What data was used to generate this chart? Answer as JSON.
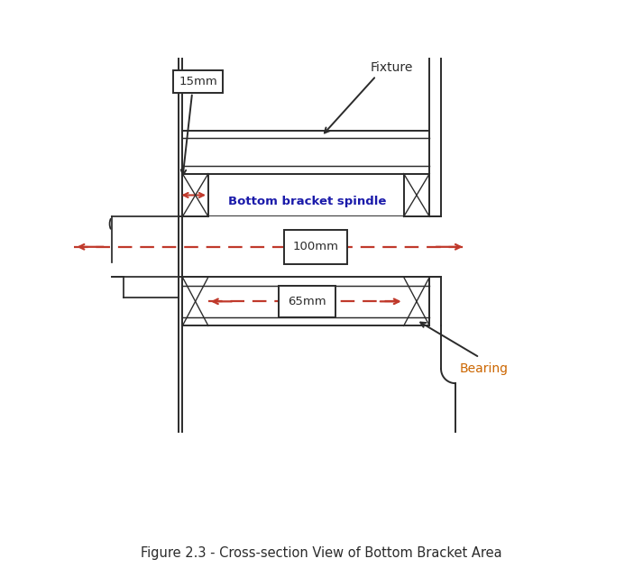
{
  "fig_width": 7.13,
  "fig_height": 6.4,
  "dpi": 100,
  "bg_color": "#ffffff",
  "line_color": "#2b2b2b",
  "red_color": "#c0392b",
  "caption": "Figure 2.3 - Cross-section View of Bottom Bracket Area",
  "caption_fontsize": 10.5,
  "label_15mm": "15mm",
  "label_fixture": "Fixture",
  "label_spindle": "Bottom bracket spindle",
  "label_100mm": "100mm",
  "label_65mm": "65mm",
  "label_bearing": "Bearing",
  "spindle_label_color": "#1a1aaa",
  "dim_100_color": "#000000",
  "dim_65_color": "#000000",
  "bearing_label_color": "#cc6600"
}
